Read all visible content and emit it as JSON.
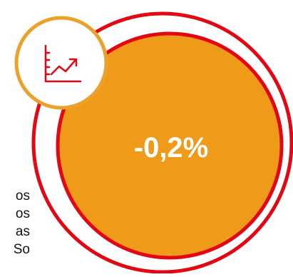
{
  "badge": {
    "icon": "line-chart-icon",
    "ring_color": "#eaa22a",
    "icon_color": "#e30613"
  },
  "dial": {
    "value_text": "-0,2%",
    "fill_color": "#f09a1a",
    "ring_color": "#e30613"
  },
  "side_text": {
    "lines": [
      "os",
      "os",
      "as",
      "So"
    ]
  }
}
